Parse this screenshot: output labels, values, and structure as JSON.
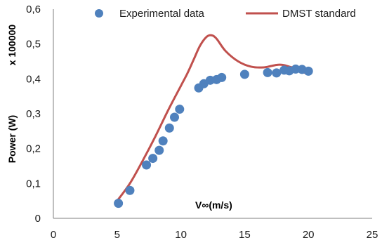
{
  "chart_data": {
    "type": "scatter",
    "xlim": [
      0,
      25
    ],
    "ylim": [
      0,
      0.6
    ],
    "x_ticks": [
      0,
      5,
      10,
      15,
      20,
      25
    ],
    "y_ticks": [
      0,
      0.1,
      0.2,
      0.3,
      0.4,
      0.5,
      0.6
    ],
    "x_tick_labels": [
      "0",
      "5",
      "10",
      "15",
      "20",
      "25"
    ],
    "y_tick_labels": [
      "0",
      "0,1",
      "0,2",
      "0,3",
      "0,4",
      "0,5",
      "0,6"
    ],
    "xlabel": "V∞(m/s)",
    "ylabel": "Power (W)",
    "ylabel_multiplier": "x 100000",
    "grid": false,
    "legend_position": "top",
    "series": [
      {
        "name": "Experimental data",
        "kind": "markers",
        "color": "#4F81BD",
        "points": [
          [
            5.1,
            0.043
          ],
          [
            6.0,
            0.08
          ],
          [
            7.3,
            0.153
          ],
          [
            7.8,
            0.172
          ],
          [
            8.3,
            0.195
          ],
          [
            8.6,
            0.222
          ],
          [
            9.1,
            0.259
          ],
          [
            9.5,
            0.29
          ],
          [
            9.9,
            0.313
          ],
          [
            11.4,
            0.374
          ],
          [
            11.8,
            0.386
          ],
          [
            12.3,
            0.396
          ],
          [
            12.8,
            0.398
          ],
          [
            13.2,
            0.404
          ],
          [
            15.0,
            0.413
          ],
          [
            16.8,
            0.418
          ],
          [
            17.5,
            0.417
          ],
          [
            18.1,
            0.425
          ],
          [
            18.5,
            0.423
          ],
          [
            19.0,
            0.428
          ],
          [
            19.5,
            0.427
          ],
          [
            20.0,
            0.422
          ]
        ]
      },
      {
        "name": "DMST standard",
        "kind": "line",
        "color": "#C0504D",
        "points": [
          [
            5.0,
            0.05
          ],
          [
            6.0,
            0.1
          ],
          [
            7.0,
            0.165
          ],
          [
            8.0,
            0.235
          ],
          [
            9.0,
            0.31
          ],
          [
            10.0,
            0.38
          ],
          [
            10.5,
            0.415
          ],
          [
            11.0,
            0.455
          ],
          [
            11.5,
            0.495
          ],
          [
            12.0,
            0.52
          ],
          [
            12.4,
            0.525
          ],
          [
            12.8,
            0.515
          ],
          [
            13.5,
            0.48
          ],
          [
            14.5,
            0.45
          ],
          [
            15.5,
            0.435
          ],
          [
            16.5,
            0.433
          ],
          [
            17.5,
            0.44
          ],
          [
            18.0,
            0.44
          ],
          [
            18.5,
            0.435
          ],
          [
            19.0,
            0.43
          ],
          [
            19.5,
            0.42
          ],
          [
            20.0,
            0.415
          ]
        ]
      }
    ]
  }
}
